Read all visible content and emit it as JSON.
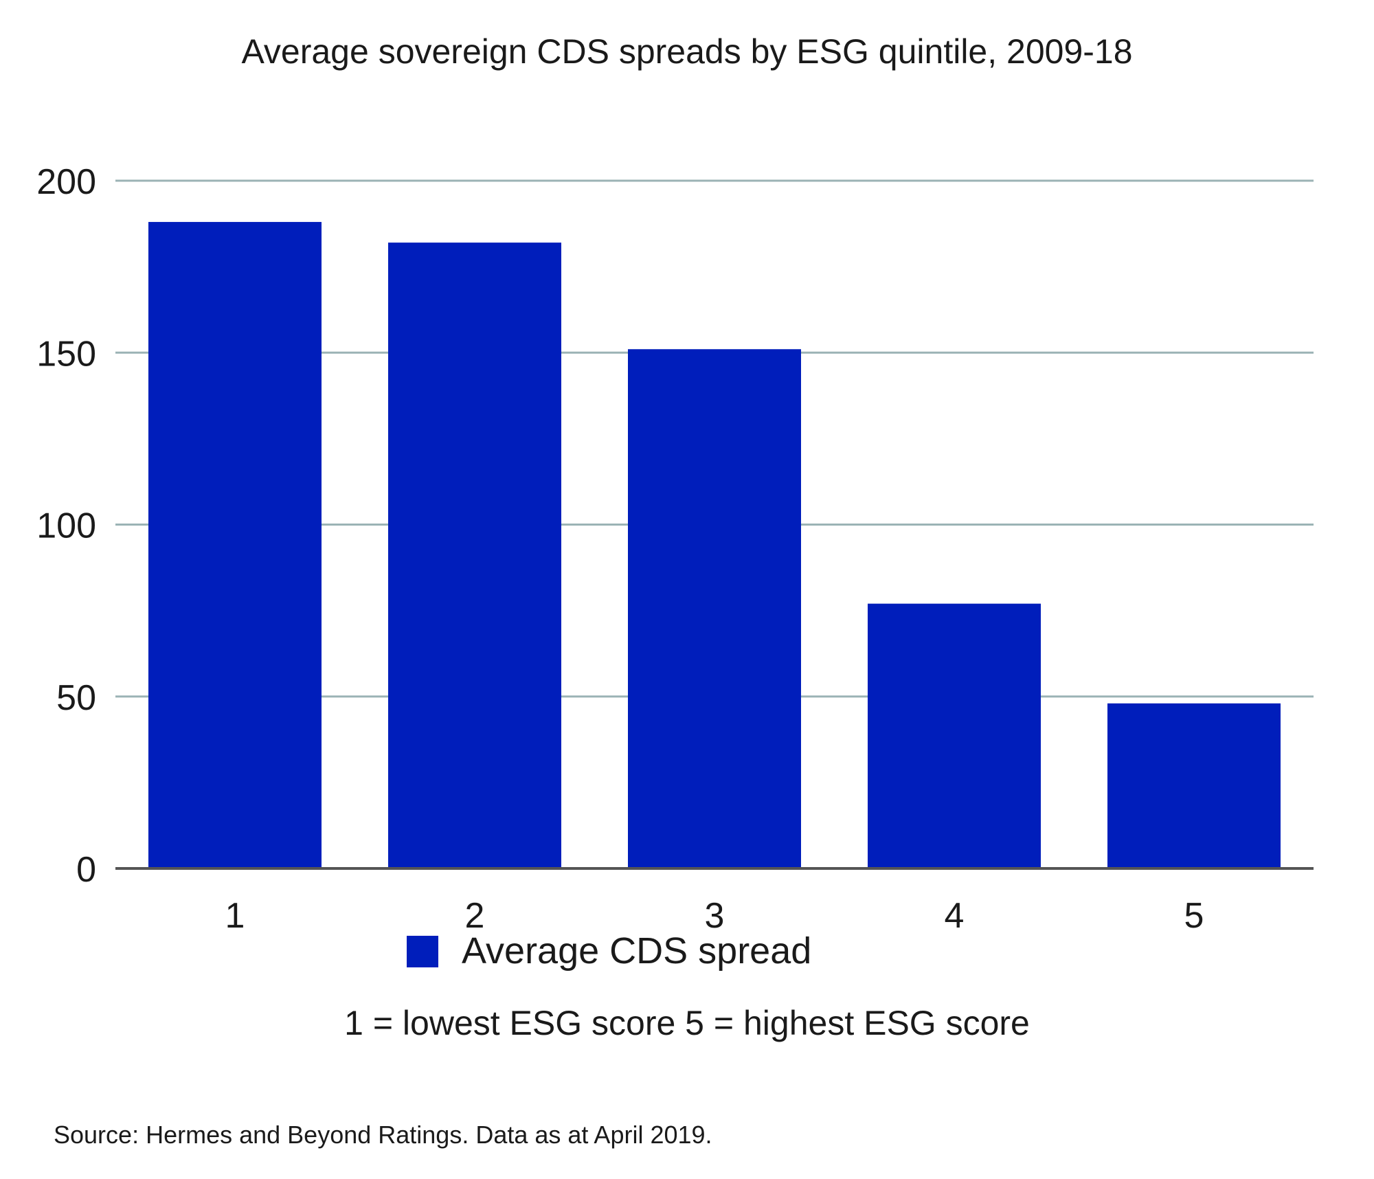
{
  "chart_data": {
    "type": "bar",
    "title": "Average sovereign CDS spreads by ESG quintile, 2009-18",
    "xlabel": "",
    "ylabel": "",
    "categories": [
      "1",
      "2",
      "3",
      "4",
      "5"
    ],
    "series": [
      {
        "name": "Average CDS spread",
        "values": [
          188,
          182,
          151,
          77,
          48
        ],
        "color": "#001ebb"
      }
    ],
    "ylim": [
      0,
      200
    ],
    "yticks": [
      "0",
      "50",
      "100",
      "150",
      "200"
    ],
    "grid": true,
    "gridline_color": "#9bb3b5",
    "axis_color": "#555555",
    "legend_position": "bottom-center",
    "note": "1 = lowest ESG score 5 = highest ESG score",
    "source": "Source: Hermes and Beyond Ratings. Data as at April 2019."
  }
}
